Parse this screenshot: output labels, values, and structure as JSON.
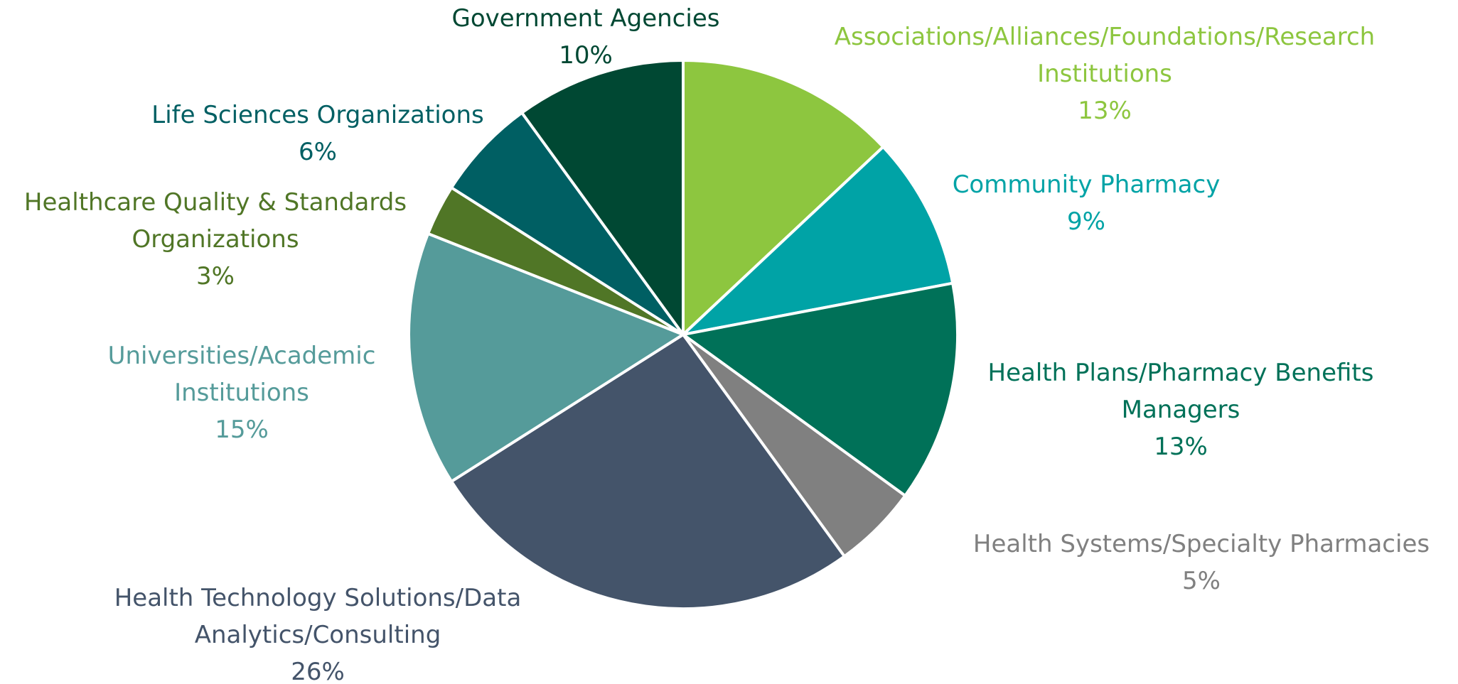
{
  "chart_data": {
    "type": "pie",
    "categories": [
      "Associations/Alliances/Foundations/Research Institutions",
      "Community Pharmacy",
      "Health Plans/Pharmacy Benefits Managers",
      "Health Systems/Specialty Pharmacies",
      "Health Technology Solutions/Data Analytics/Consulting",
      "Universities/Academic Institutions",
      "Healthcare Quality & Standards Organizations",
      "Life Sciences Organizations",
      "Government Agencies"
    ],
    "values": [
      13,
      9,
      13,
      5,
      26,
      15,
      3,
      6,
      10
    ],
    "value_labels": [
      "13%",
      "9%",
      "13%",
      "5%",
      "26%",
      "15%",
      "3%",
      "6%",
      "10%"
    ],
    "colors": [
      "#8dc63f",
      "#00a3a6",
      "#007158",
      "#808080",
      "#44546a",
      "#559b9a",
      "#507626",
      "#005f63",
      "#004833"
    ]
  }
}
